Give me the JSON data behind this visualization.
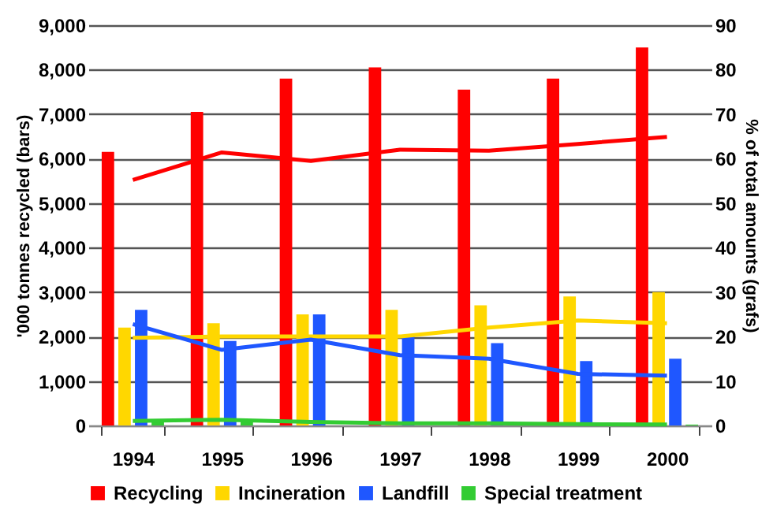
{
  "chart_data": {
    "type": "bar",
    "ylabel": "'000 tonnes recycled (bars)",
    "y2label": "% of total amounts (grafs)",
    "categories": [
      "1994",
      "1995",
      "1996",
      "1997",
      "1998",
      "1999",
      "2000"
    ],
    "series": [
      {
        "name": "Recycling",
        "color": "#ff0000",
        "values": [
          6150,
          7050,
          7800,
          8050,
          7550,
          7800,
          8500
        ]
      },
      {
        "name": "Incineration",
        "color": "#ffd700",
        "values": [
          2200,
          2300,
          2500,
          2600,
          2700,
          2900,
          3000
        ]
      },
      {
        "name": "Landfill",
        "color": "#1f57ff",
        "values": [
          2600,
          1900,
          2500,
          2000,
          1850,
          1450,
          1500
        ]
      },
      {
        "name": "Special treatment",
        "color": "#33cc33",
        "values": [
          100,
          120,
          null,
          null,
          50,
          30,
          20
        ]
      },
      {
        "type": "line",
        "axis": "y2",
        "color": "#ff0000",
        "values": [
          55.2,
          61.4,
          59.5,
          62,
          61.8,
          63.3,
          64.9
        ]
      },
      {
        "type": "line",
        "axis": "y2",
        "color": "#ffd700",
        "values": [
          19.7,
          20,
          20,
          20,
          22,
          23.6,
          23
        ]
      },
      {
        "type": "line",
        "axis": "y2",
        "color": "#1f57ff",
        "values": [
          22.8,
          17,
          19.3,
          15.8,
          15,
          11.6,
          11.2
        ]
      },
      {
        "type": "line",
        "axis": "y2",
        "color": "#33cc33",
        "values": [
          1,
          1.3,
          0.8,
          0.5,
          0.5,
          0.3,
          0.2
        ]
      }
    ],
    "ylim": [
      0,
      9000
    ],
    "yticks": [
      0,
      {
        "value": 1000,
        "label": "1,000"
      },
      {
        "value": 2000,
        "label": "2,000"
      },
      {
        "value": 3000,
        "label": "3,000"
      },
      {
        "value": 4000,
        "label": "4,000"
      },
      {
        "value": 5000,
        "label": "5,000"
      },
      {
        "value": 6000,
        "label": "6,000"
      },
      {
        "value": 7000,
        "label": "7,000"
      },
      {
        "value": 8000,
        "label": "8,000"
      },
      {
        "value": 9000,
        "label": "9,000"
      }
    ],
    "y2lim": [
      0,
      90
    ],
    "y2ticks": [
      0,
      10,
      20,
      30,
      40,
      50,
      60,
      70,
      80,
      90
    ],
    "grid": "y",
    "legend": "bottom",
    "marker": "none",
    "line_style": "solid"
  }
}
